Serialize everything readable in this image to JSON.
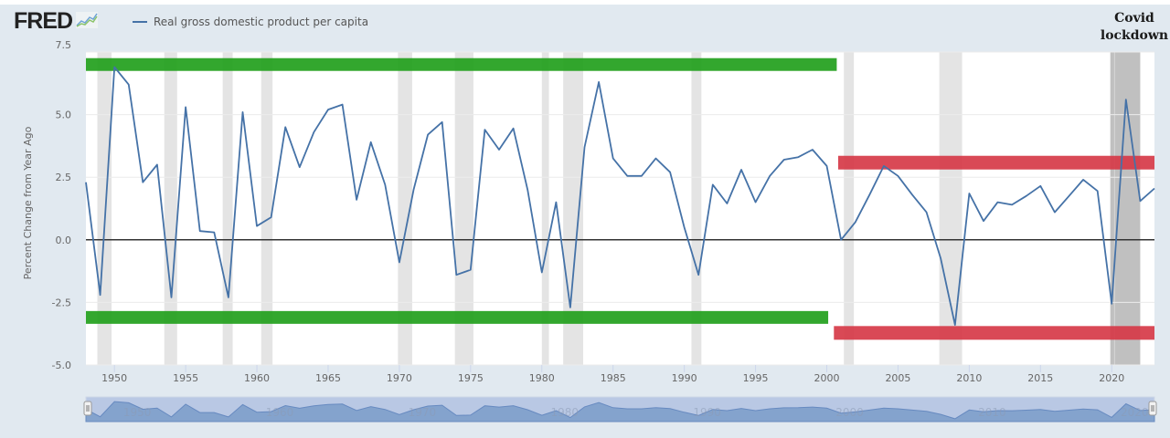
{
  "header": {
    "logo_text": "FRED",
    "logo_icon": "line-chart-icon",
    "legend_label": "Real gross domestic product per capita",
    "series_color": "#4572a7"
  },
  "annotation": {
    "line1": "Covid",
    "line2": "lockdown"
  },
  "colors": {
    "background": "#e1e9f0",
    "plot_bg": "#ffffff",
    "recession_band": "#e4e4e4",
    "covid_band": "#c0c0c0",
    "green_bar": "#22a01c",
    "red_bar": "#d63a48",
    "zero_line": "#333333",
    "navigator_bg": "#b9c8e4",
    "navigator_fill": "#7f9fcb"
  },
  "chart_data": {
    "type": "line",
    "title": "Real gross domestic product per capita",
    "xlabel": "",
    "ylabel": "Percent Change from Year Ago",
    "ylim": [
      -5.0,
      7.5
    ],
    "xlim": [
      1948,
      2023
    ],
    "yticks": [
      -5.0,
      -2.5,
      0.0,
      2.5,
      5.0,
      7.5
    ],
    "ytick_labels": [
      "-5.0",
      "-2.5",
      "0.0",
      "2.5",
      "5.0",
      "7.5"
    ],
    "xticks": [
      1950,
      1955,
      1960,
      1965,
      1970,
      1975,
      1980,
      1985,
      1990,
      1995,
      2000,
      2005,
      2010,
      2015,
      2020
    ],
    "grid": true,
    "legend_position": "top-left",
    "series": [
      {
        "name": "Real gross domestic product per capita",
        "x": [
          1948,
          1949,
          1950,
          1951,
          1952,
          1953,
          1954,
          1955,
          1956,
          1957,
          1958,
          1959,
          1960,
          1961,
          1962,
          1963,
          1964,
          1965,
          1966,
          1967,
          1968,
          1969,
          1970,
          1971,
          1972,
          1973,
          1974,
          1975,
          1976,
          1977,
          1978,
          1979,
          1980,
          1981,
          1982,
          1983,
          1984,
          1985,
          1986,
          1987,
          1988,
          1989,
          1990,
          1991,
          1992,
          1993,
          1994,
          1995,
          1996,
          1997,
          1998,
          1999,
          2000,
          2001,
          2002,
          2003,
          2004,
          2005,
          2006,
          2007,
          2008,
          2009,
          2010,
          2011,
          2012,
          2013,
          2014,
          2015,
          2016,
          2017,
          2018,
          2019,
          2020,
          2021,
          2022,
          2023
        ],
        "values": [
          2.3,
          -2.2,
          6.9,
          6.2,
          2.3,
          3.0,
          -2.3,
          5.3,
          0.35,
          0.3,
          -2.3,
          5.1,
          0.55,
          0.9,
          4.5,
          2.9,
          4.3,
          5.2,
          5.4,
          1.6,
          3.9,
          2.2,
          -0.9,
          2.0,
          4.2,
          4.7,
          -1.4,
          -1.2,
          4.4,
          3.6,
          4.45,
          2.0,
          -1.3,
          1.5,
          -2.7,
          3.7,
          6.3,
          3.25,
          2.55,
          2.55,
          3.25,
          2.7,
          0.5,
          -1.4,
          2.2,
          1.45,
          2.8,
          1.5,
          2.55,
          3.2,
          3.3,
          3.6,
          2.95,
          0.0,
          0.7,
          1.8,
          2.95,
          2.55,
          1.8,
          1.1,
          -0.75,
          -3.4,
          1.85,
          0.75,
          1.5,
          1.4,
          1.75,
          2.15,
          1.1,
          1.75,
          2.4,
          1.95,
          -2.55,
          5.6,
          1.55,
          2.05
        ]
      }
    ],
    "recessions": [
      [
        1948.8,
        1949.8
      ],
      [
        1953.5,
        1954.4
      ],
      [
        1957.6,
        1958.3
      ],
      [
        1960.3,
        1961.1
      ],
      [
        1969.9,
        1970.9
      ],
      [
        1973.9,
        1975.2
      ],
      [
        1980.0,
        1980.5
      ],
      [
        1981.5,
        1982.9
      ],
      [
        1990.5,
        1991.2
      ],
      [
        2001.2,
        2001.9
      ],
      [
        2007.9,
        2009.5
      ]
    ],
    "covid_band": [
      2019.9,
      2022.0
    ],
    "annotation_bars": [
      {
        "color": "green",
        "position": "top",
        "x_start": 1948,
        "x_end": 2000.7,
        "y": 7.0
      },
      {
        "color": "green",
        "position": "bottom",
        "x_start": 1948,
        "x_end": 2000.1,
        "y": -3.1
      },
      {
        "color": "red",
        "position": "top",
        "x_start": 2000.8,
        "x_end": 2023,
        "y": 3.1
      },
      {
        "color": "red",
        "position": "bottom",
        "x_start": 2000.5,
        "x_end": 2023,
        "y": -3.7
      }
    ],
    "annotations": [
      "Covid lockdown"
    ],
    "navigator": {
      "labels": [
        "1950",
        "1960",
        "1970",
        "1980",
        "1990",
        "2000",
        "2010",
        "2020"
      ]
    }
  }
}
